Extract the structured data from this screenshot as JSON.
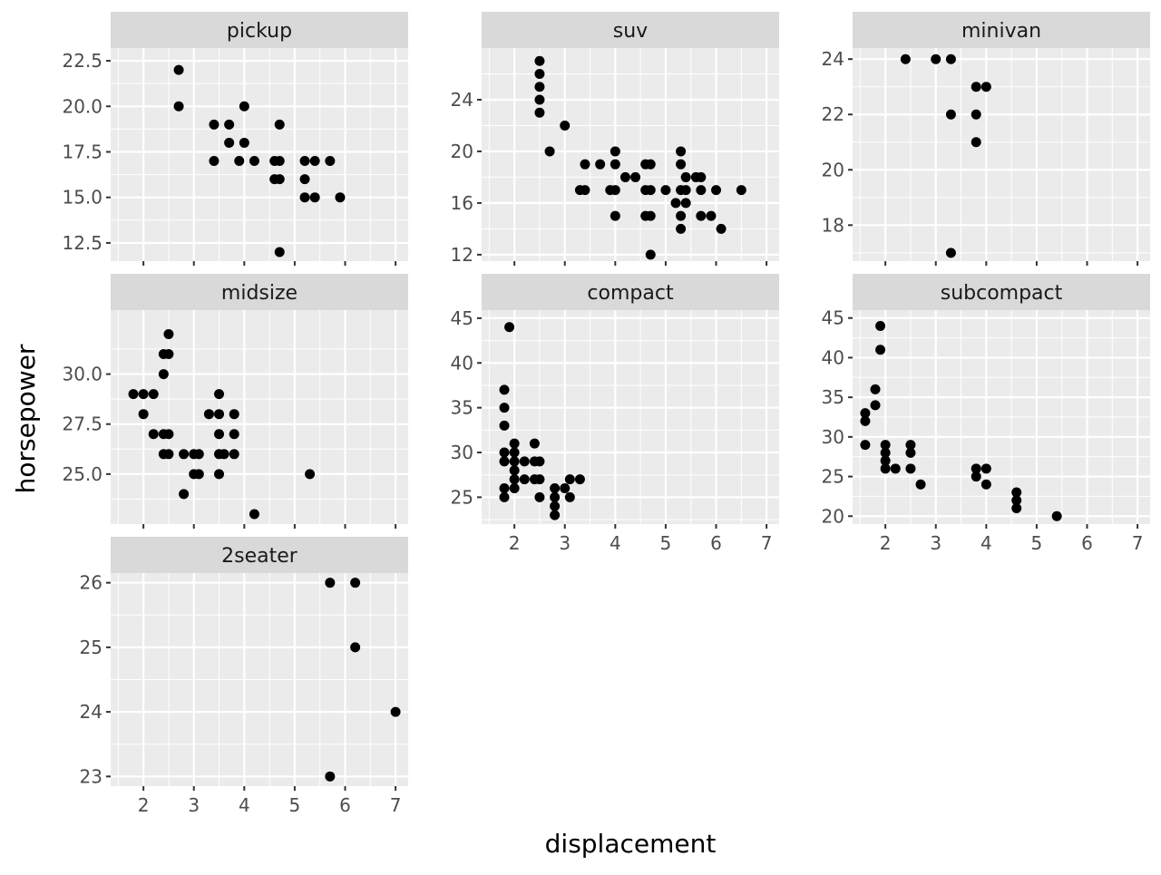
{
  "chart_data": {
    "type": "scatter",
    "xlabel": "displacement",
    "ylabel": "horsepower",
    "xlim": [
      1.35,
      7.25
    ],
    "x_ticks": [
      2,
      3,
      4,
      5,
      6,
      7
    ],
    "x_tick_labels": [
      "2",
      "3",
      "4",
      "5",
      "6",
      "7"
    ],
    "grid": true,
    "colors": {
      "panel_bg": "#ebebeb",
      "grid": "#ffffff",
      "strip_bg": "#d9d9d9",
      "point": "#000000",
      "tick": "#333333"
    },
    "panels": [
      {
        "title": "pickup",
        "ylim": [
          11.5,
          23.2
        ],
        "y_ticks": [
          12.5,
          15.0,
          17.5,
          20.0,
          22.5
        ],
        "y_tick_labels": [
          "12.5",
          "15.0",
          "17.5",
          "20.0",
          "22.5"
        ],
        "points": [
          [
            2.7,
            22
          ],
          [
            2.7,
            20
          ],
          [
            3.4,
            19
          ],
          [
            3.7,
            19
          ],
          [
            4.0,
            20
          ],
          [
            3.7,
            18
          ],
          [
            4.0,
            18
          ],
          [
            3.4,
            17
          ],
          [
            3.9,
            17
          ],
          [
            4.2,
            17
          ],
          [
            4.6,
            17
          ],
          [
            4.7,
            17
          ],
          [
            4.7,
            19
          ],
          [
            4.7,
            16
          ],
          [
            4.6,
            16
          ],
          [
            5.2,
            17
          ],
          [
            5.4,
            17
          ],
          [
            5.7,
            17
          ],
          [
            5.2,
            16
          ],
          [
            5.2,
            15
          ],
          [
            5.4,
            15
          ],
          [
            5.9,
            15
          ],
          [
            4.7,
            12
          ]
        ]
      },
      {
        "title": "suv",
        "ylim": [
          11.5,
          28.0
        ],
        "y_ticks": [
          12,
          16,
          20,
          24
        ],
        "y_tick_labels": [
          "12",
          "16",
          "20",
          "24"
        ],
        "points": [
          [
            2.5,
            27
          ],
          [
            2.5,
            26
          ],
          [
            2.5,
            25
          ],
          [
            2.5,
            24
          ],
          [
            2.5,
            23
          ],
          [
            2.7,
            20
          ],
          [
            3.0,
            22
          ],
          [
            3.3,
            17
          ],
          [
            3.4,
            17
          ],
          [
            3.4,
            19
          ],
          [
            3.7,
            19
          ],
          [
            3.9,
            17
          ],
          [
            4.0,
            17
          ],
          [
            4.0,
            19
          ],
          [
            4.0,
            20
          ],
          [
            4.0,
            15
          ],
          [
            4.2,
            18
          ],
          [
            4.4,
            18
          ],
          [
            4.6,
            19
          ],
          [
            4.6,
            17
          ],
          [
            4.6,
            15
          ],
          [
            4.7,
            19
          ],
          [
            4.7,
            17
          ],
          [
            4.7,
            15
          ],
          [
            4.7,
            12
          ],
          [
            5.0,
            17
          ],
          [
            5.2,
            16
          ],
          [
            5.3,
            20
          ],
          [
            5.3,
            19
          ],
          [
            5.3,
            17
          ],
          [
            5.3,
            15
          ],
          [
            5.3,
            14
          ],
          [
            5.4,
            18
          ],
          [
            5.4,
            17
          ],
          [
            5.4,
            16
          ],
          [
            5.6,
            18
          ],
          [
            5.7,
            18
          ],
          [
            5.7,
            17
          ],
          [
            5.7,
            15
          ],
          [
            5.9,
            15
          ],
          [
            6.0,
            17
          ],
          [
            6.1,
            14
          ],
          [
            6.5,
            17
          ]
        ]
      },
      {
        "title": "minivan",
        "ylim": [
          16.7,
          24.4
        ],
        "y_ticks": [
          18,
          20,
          22,
          24
        ],
        "y_tick_labels": [
          "18",
          "20",
          "22",
          "24"
        ],
        "points": [
          [
            2.4,
            24
          ],
          [
            3.0,
            24
          ],
          [
            3.3,
            24
          ],
          [
            3.3,
            22
          ],
          [
            3.3,
            17
          ],
          [
            3.8,
            23
          ],
          [
            3.8,
            22
          ],
          [
            3.8,
            21
          ],
          [
            4.0,
            23
          ]
        ]
      },
      {
        "title": "midsize",
        "ylim": [
          22.5,
          33.2
        ],
        "y_ticks": [
          25.0,
          27.5,
          30.0
        ],
        "y_tick_labels": [
          "25.0",
          "27.5",
          "30.0"
        ],
        "points": [
          [
            1.8,
            29
          ],
          [
            2.0,
            29
          ],
          [
            2.0,
            28
          ],
          [
            2.2,
            29
          ],
          [
            2.2,
            27
          ],
          [
            2.4,
            27
          ],
          [
            2.4,
            26
          ],
          [
            2.4,
            30
          ],
          [
            2.4,
            31
          ],
          [
            2.5,
            31
          ],
          [
            2.5,
            32
          ],
          [
            2.5,
            27
          ],
          [
            2.5,
            26
          ],
          [
            2.8,
            26
          ],
          [
            2.8,
            24
          ],
          [
            3.0,
            26
          ],
          [
            3.0,
            25
          ],
          [
            3.1,
            26
          ],
          [
            3.1,
            25
          ],
          [
            3.3,
            28
          ],
          [
            3.5,
            29
          ],
          [
            3.5,
            28
          ],
          [
            3.5,
            27
          ],
          [
            3.5,
            26
          ],
          [
            3.5,
            25
          ],
          [
            3.6,
            26
          ],
          [
            3.8,
            28
          ],
          [
            3.8,
            27
          ],
          [
            3.8,
            26
          ],
          [
            4.2,
            23
          ],
          [
            5.3,
            25
          ]
        ]
      },
      {
        "title": "compact",
        "ylim": [
          22.0,
          45.9
        ],
        "y_ticks": [
          25,
          30,
          35,
          40,
          45
        ],
        "y_tick_labels": [
          "25",
          "30",
          "35",
          "40",
          "45"
        ],
        "points": [
          [
            1.8,
            37
          ],
          [
            1.8,
            35
          ],
          [
            1.8,
            33
          ],
          [
            1.8,
            30
          ],
          [
            1.8,
            29
          ],
          [
            1.8,
            26
          ],
          [
            1.8,
            25
          ],
          [
            1.9,
            44
          ],
          [
            2.0,
            31
          ],
          [
            2.0,
            30
          ],
          [
            2.0,
            29
          ],
          [
            2.0,
            28
          ],
          [
            2.0,
            27
          ],
          [
            2.0,
            26
          ],
          [
            2.2,
            29
          ],
          [
            2.2,
            27
          ],
          [
            2.4,
            31
          ],
          [
            2.4,
            29
          ],
          [
            2.4,
            27
          ],
          [
            2.5,
            29
          ],
          [
            2.5,
            27
          ],
          [
            2.5,
            25
          ],
          [
            2.8,
            26
          ],
          [
            2.8,
            25
          ],
          [
            2.8,
            24
          ],
          [
            2.8,
            23
          ],
          [
            3.0,
            26
          ],
          [
            3.1,
            27
          ],
          [
            3.1,
            25
          ],
          [
            3.3,
            27
          ]
        ]
      },
      {
        "title": "subcompact",
        "ylim": [
          19.0,
          46.0
        ],
        "y_ticks": [
          20,
          25,
          30,
          35,
          40,
          45
        ],
        "y_tick_labels": [
          "20",
          "25",
          "30",
          "35",
          "40",
          "45"
        ],
        "points": [
          [
            1.6,
            33
          ],
          [
            1.6,
            32
          ],
          [
            1.6,
            29
          ],
          [
            1.8,
            36
          ],
          [
            1.8,
            34
          ],
          [
            1.9,
            44
          ],
          [
            1.9,
            41
          ],
          [
            2.0,
            29
          ],
          [
            2.0,
            28
          ],
          [
            2.0,
            27
          ],
          [
            2.0,
            26
          ],
          [
            2.2,
            26
          ],
          [
            2.5,
            29
          ],
          [
            2.5,
            28
          ],
          [
            2.5,
            26
          ],
          [
            2.7,
            24
          ],
          [
            3.8,
            26
          ],
          [
            3.8,
            25
          ],
          [
            4.0,
            26
          ],
          [
            4.0,
            24
          ],
          [
            4.6,
            23
          ],
          [
            4.6,
            22
          ],
          [
            4.6,
            21
          ],
          [
            5.4,
            20
          ]
        ]
      },
      {
        "title": "2seater",
        "ylim": [
          22.85,
          26.15
        ],
        "y_ticks": [
          23,
          24,
          25,
          26
        ],
        "y_tick_labels": [
          "23",
          "24",
          "25",
          "26"
        ],
        "points": [
          [
            5.7,
            26
          ],
          [
            6.2,
            26
          ],
          [
            6.2,
            25
          ],
          [
            7.0,
            24
          ],
          [
            5.7,
            23
          ]
        ]
      }
    ]
  }
}
